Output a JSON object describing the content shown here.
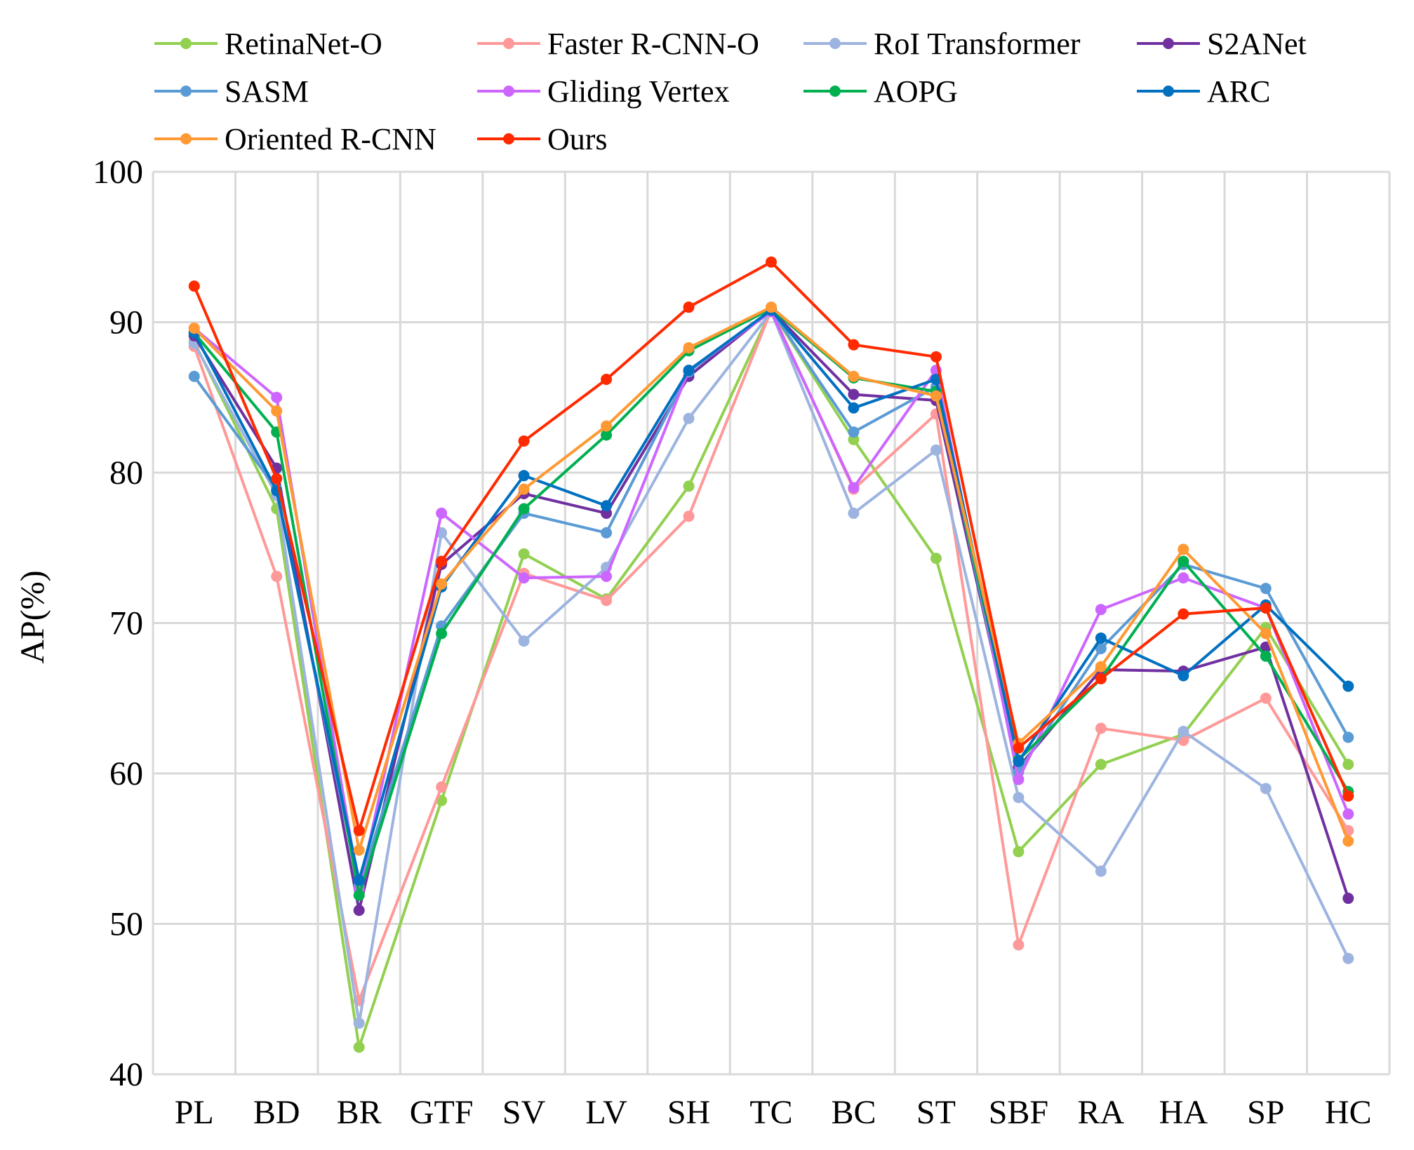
{
  "chart_data": {
    "type": "line",
    "title": "",
    "xlabel": "",
    "ylabel": "AP(%)",
    "ylim": [
      40,
      100
    ],
    "yticks": [
      40,
      50,
      60,
      70,
      80,
      90,
      100
    ],
    "grid": true,
    "legend_position": "top",
    "categories": [
      "PL",
      "BD",
      "BR",
      "GTF",
      "SV",
      "LV",
      "SH",
      "TC",
      "BC",
      "ST",
      "SBF",
      "RA",
      "HA",
      "SP",
      "HC"
    ],
    "series": [
      {
        "name": "RetinaNet-O",
        "color": "#92d050",
        "values": [
          88.7,
          77.6,
          41.8,
          58.2,
          74.6,
          71.6,
          79.1,
          90.8,
          82.2,
          74.3,
          54.8,
          60.6,
          62.6,
          69.7,
          60.6
        ]
      },
      {
        "name": "Faster R-CNN-O",
        "color": "#ff9999",
        "values": [
          88.4,
          73.1,
          44.9,
          59.1,
          73.3,
          71.5,
          77.1,
          90.8,
          78.9,
          83.9,
          48.6,
          63.0,
          62.2,
          65.0,
          56.2
        ]
      },
      {
        "name": "RoI Transformer",
        "color": "#9db4e0",
        "values": [
          88.6,
          78.5,
          43.4,
          76.0,
          68.8,
          73.7,
          83.6,
          90.7,
          77.3,
          81.5,
          58.4,
          53.5,
          62.8,
          59.0,
          47.7
        ]
      },
      {
        "name": "S2ANet",
        "color": "#7030a0",
        "values": [
          89.1,
          80.3,
          50.9,
          73.9,
          78.6,
          77.3,
          86.4,
          90.8,
          85.2,
          84.8,
          60.4,
          66.9,
          66.8,
          68.4,
          51.7
        ]
      },
      {
        "name": "SASM",
        "color": "#5b9bd5",
        "values": [
          86.4,
          78.9,
          52.5,
          69.8,
          77.3,
          76.0,
          86.7,
          90.8,
          82.7,
          85.7,
          60.1,
          68.3,
          73.9,
          72.3,
          62.4
        ]
      },
      {
        "name": "Gliding Vertex",
        "color": "#cc66ff",
        "values": [
          89.6,
          85.0,
          52.3,
          77.3,
          73.0,
          73.1,
          86.8,
          90.7,
          79.0,
          86.8,
          59.6,
          70.9,
          73.0,
          71.0,
          57.3
        ]
      },
      {
        "name": "AOPG",
        "color": "#00b050",
        "values": [
          89.3,
          82.7,
          51.9,
          69.3,
          77.6,
          82.5,
          88.1,
          90.9,
          86.3,
          85.4,
          60.9,
          66.3,
          74.1,
          67.8,
          58.8
        ]
      },
      {
        "name": "ARC",
        "color": "#0070c0",
        "values": [
          89.3,
          78.8,
          52.9,
          72.4,
          79.8,
          77.8,
          86.8,
          90.8,
          84.3,
          86.2,
          60.8,
          69.0,
          66.5,
          71.2,
          65.8
        ]
      },
      {
        "name": "Oriented R-CNN",
        "color": "#ff9933",
        "values": [
          89.6,
          84.1,
          54.9,
          72.6,
          78.9,
          83.1,
          88.3,
          91.0,
          86.4,
          85.1,
          62.0,
          67.1,
          74.9,
          69.3,
          55.5
        ]
      },
      {
        "name": "Ours",
        "color": "#ff2a00",
        "values": [
          92.4,
          79.6,
          56.2,
          74.1,
          82.1,
          86.2,
          91.0,
          94.0,
          88.5,
          87.7,
          61.7,
          66.3,
          70.6,
          71.0,
          58.5
        ]
      }
    ]
  }
}
